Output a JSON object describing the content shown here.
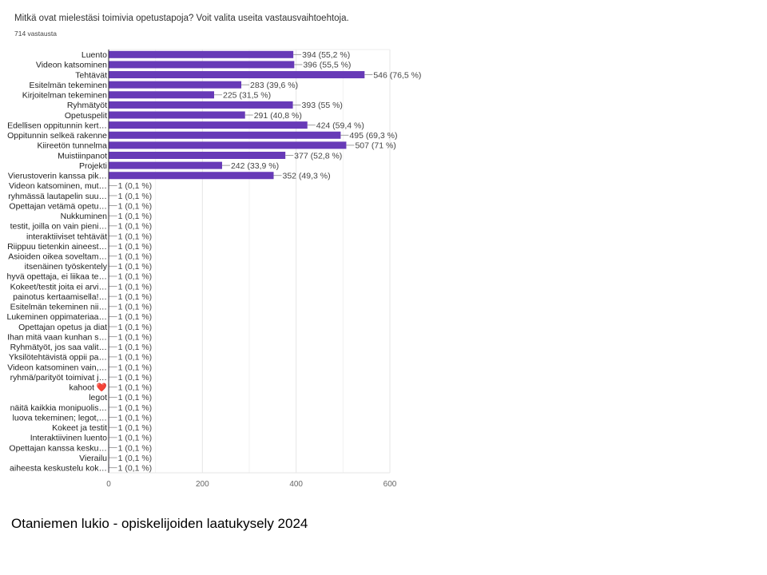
{
  "chart_data": {
    "type": "bar",
    "orientation": "horizontal",
    "title": "Mitkä ovat mielestäsi toimivia opetustapoja? Voit valita useita vastausvaihtoehtoja.",
    "subtitle": "714 vastausta",
    "xlim": [
      0,
      600
    ],
    "xticks": [
      0,
      200,
      400,
      600
    ],
    "grid": true,
    "bar_color": "#673ab7",
    "categories": [
      "Luento",
      "Videon katsominen",
      "Tehtävät",
      "Esitelmän tekeminen",
      "Kirjoitelman tekeminen",
      "Ryhmätyöt",
      "Opetuspelit",
      "Edellisen oppitunnin kert…",
      "Oppitunnin selkeä rakenne",
      "Kiireetön tunnelma",
      "Muistiinpanot",
      "Projekti",
      "Vierustoverin kanssa pik…",
      "Videon katsominen, mut…",
      "ryhmässä lautapelin suu…",
      "Opettajan vetämä opetu…",
      "Nukkuminen",
      "testit, joilla on vain pieni…",
      "interaktiiviset tehtävät",
      "Riippuu tietenkin aineest…",
      "Asioiden oikea soveltam…",
      "itsenäinen työskentely",
      "hyvä opettaja, ei liikaa te…",
      "Kokeet/testit joita ei arvi…",
      "painotus kertaamisella!…",
      "Esitelmän tekeminen nii…",
      "Lukeminen oppimateriaa…",
      "Opettajan opetus ja diat",
      "Ihan mitä vaan kunhan s…",
      "Ryhmätyöt, jos saa valit…",
      "Yksilötehtävistä oppii pa…",
      "Videon katsominen vain,…",
      "ryhmä/parityöt toimivat j…",
      "kahoot ❤️",
      "legot",
      "näitä kaikkia monipuolis…",
      "luova tekeminen; legot,…",
      "Kokeet ja testit",
      "Interaktiivinen luento",
      "Opettajan kanssa kesku…",
      "Vierailu",
      "aiheesta keskustelu kok…"
    ],
    "values": [
      394,
      396,
      546,
      283,
      225,
      393,
      291,
      424,
      495,
      507,
      377,
      242,
      352,
      1,
      1,
      1,
      1,
      1,
      1,
      1,
      1,
      1,
      1,
      1,
      1,
      1,
      1,
      1,
      1,
      1,
      1,
      1,
      1,
      1,
      1,
      1,
      1,
      1,
      1,
      1,
      1,
      1
    ],
    "data_labels": [
      "394 (55,2 %)",
      "396 (55,5 %)",
      "546 (76,5 %)",
      "283 (39,6 %)",
      "225 (31,5 %)",
      "393 (55 %)",
      "291 (40,8 %)",
      "424 (59,4 %)",
      "495 (69,3 %)",
      "507 (71 %)",
      "377 (52,8 %)",
      "242 (33,9 %)",
      "352 (49,3 %)",
      "1 (0,1 %)",
      "1 (0,1 %)",
      "1 (0,1 %)",
      "1 (0,1 %)",
      "1 (0,1 %)",
      "1 (0,1 %)",
      "1 (0,1 %)",
      "1 (0,1 %)",
      "1 (0,1 %)",
      "1 (0,1 %)",
      "1 (0,1 %)",
      "1 (0,1 %)",
      "1 (0,1 %)",
      "1 (0,1 %)",
      "1 (0,1 %)",
      "1 (0,1 %)",
      "1 (0,1 %)",
      "1 (0,1 %)",
      "1 (0,1 %)",
      "1 (0,1 %)",
      "1 (0,1 %)",
      "1 (0,1 %)",
      "1 (0,1 %)",
      "1 (0,1 %)",
      "1 (0,1 %)",
      "1 (0,1 %)",
      "1 (0,1 %)",
      "1 (0,1 %)",
      "1 (0,1 %)"
    ]
  },
  "footer": "Otaniemen lukio - opiskelijoiden laatukysely 2024"
}
